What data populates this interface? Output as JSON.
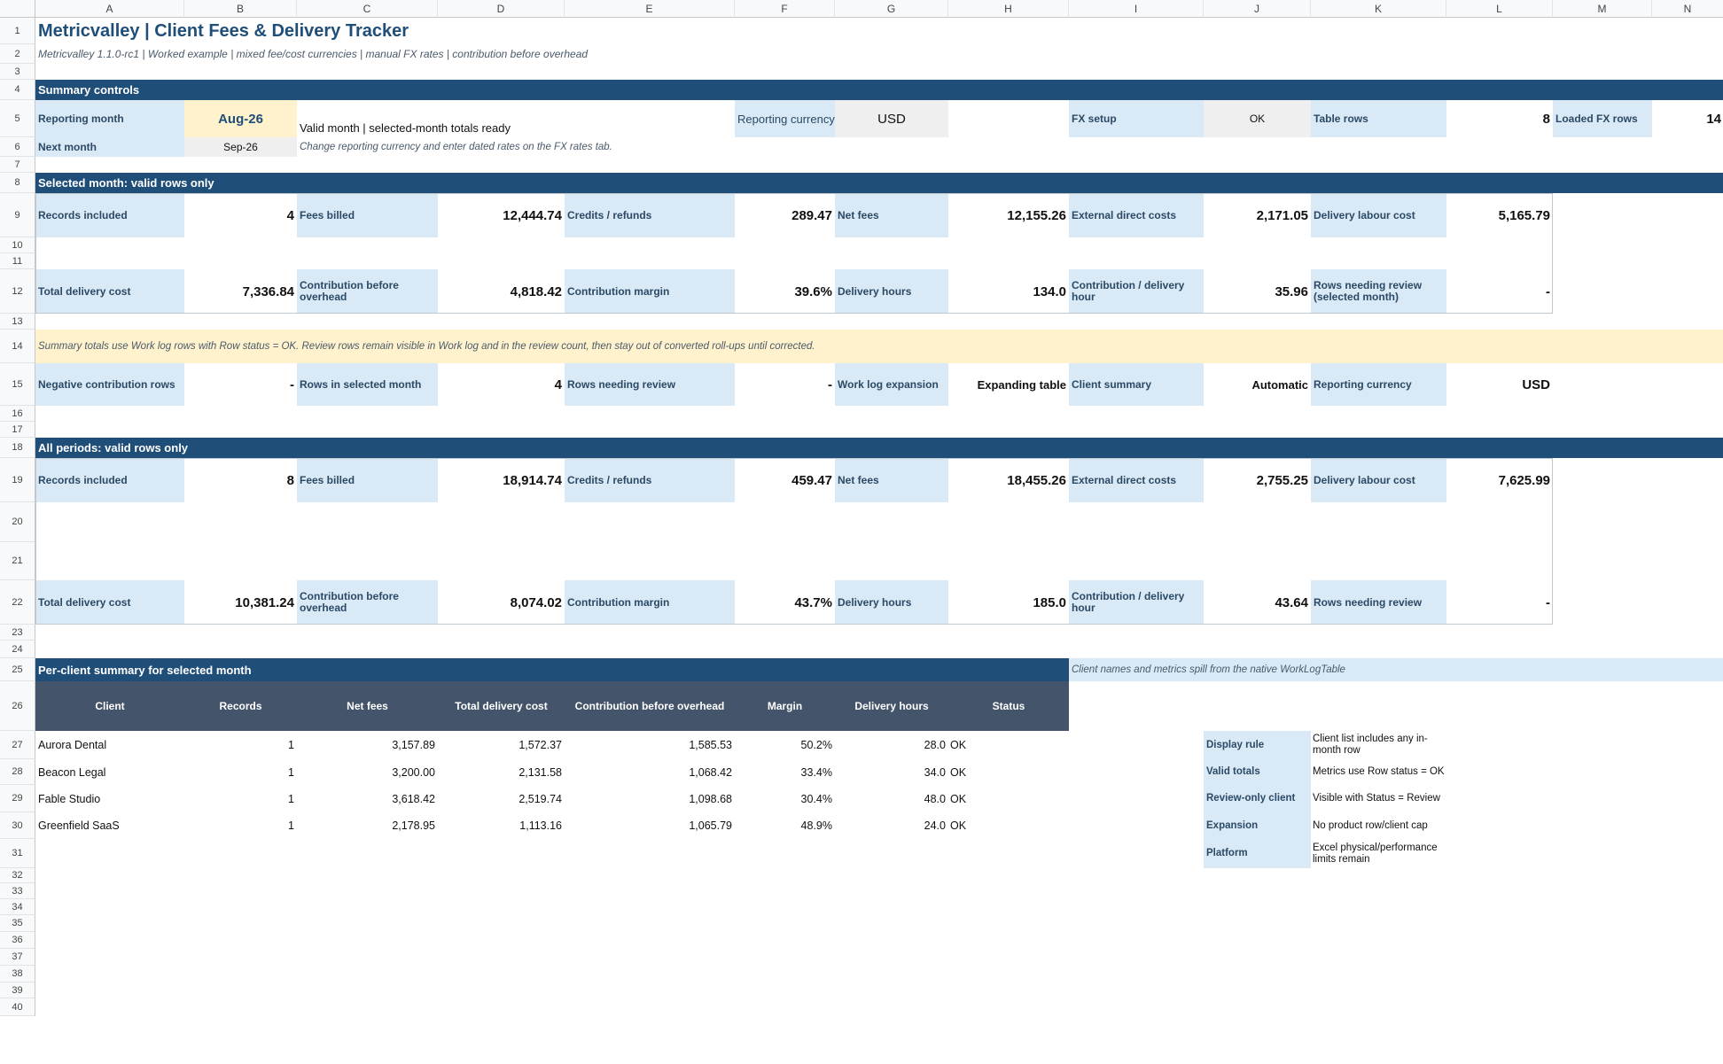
{
  "columns": [
    "A",
    "B",
    "C",
    "D",
    "E",
    "F",
    "G",
    "H",
    "I",
    "J",
    "K",
    "L",
    "M",
    "N"
  ],
  "rows": [
    "1",
    "2",
    "3",
    "4",
    "5",
    "6",
    "7",
    "8",
    "9",
    "10",
    "11",
    "12",
    "13",
    "14",
    "15",
    "16",
    "17",
    "18",
    "19",
    "20",
    "21",
    "22",
    "23",
    "24",
    "25",
    "26",
    "27",
    "28",
    "29",
    "30",
    "31",
    "32",
    "33",
    "34",
    "35",
    "36",
    "37",
    "38",
    "39",
    "40"
  ],
  "title": "Metricvalley | Client Fees & Delivery Tracker",
  "subtitle": "Metricvalley 1.1.0-rc1 | Worked example | mixed fee/cost currencies | manual FX rates | contribution before overhead",
  "summary_controls": {
    "band": "Summary controls",
    "reporting_month_label": "Reporting month",
    "reporting_month": "Aug-26",
    "status": "Valid month | selected-month totals ready",
    "reporting_currency_label": "Reporting currency",
    "reporting_currency": "USD",
    "fx_setup_label": "FX setup",
    "fx_setup": "OK",
    "table_rows_label": "Table rows",
    "table_rows": "8",
    "loaded_fx_label": "Loaded FX rows",
    "loaded_fx": "14",
    "next_month_label": "Next month",
    "next_month": "Sep-26",
    "note": "Change reporting currency and enter dated rates on the FX rates tab."
  },
  "selected_month": {
    "band": "Selected month: valid rows only",
    "records_label": "Records included",
    "records": "4",
    "fees_label": "Fees billed",
    "fees": "12,444.74",
    "credits_label": "Credits / refunds",
    "credits": "289.47",
    "net_label": "Net fees",
    "net": "12,155.26",
    "ext_label": "External direct costs",
    "ext": "2,171.05",
    "labour_label": "Delivery labour cost",
    "labour": "5,165.79",
    "total_cost_label": "Total delivery cost",
    "total_cost": "7,336.84",
    "contrib_label": "Contribution before overhead",
    "contrib": "4,818.42",
    "margin_label": "Contribution margin",
    "margin": "39.6%",
    "hours_label": "Delivery hours",
    "hours": "134.0",
    "per_hour_label": "Contribution / delivery hour",
    "per_hour": "35.96",
    "review_label": "Rows needing review (selected month)",
    "review": "-"
  },
  "info_note": "Summary totals use Work log rows with Row status = OK. Review rows remain visible in Work log and in the review count, then stay out of converted roll-ups until corrected.",
  "checks": {
    "neg_label": "Negative contribution rows",
    "neg": "-",
    "rows_month_label": "Rows in selected month",
    "rows_month": "4",
    "review_label": "Rows needing review",
    "review": "-",
    "expansion_label": "Work log expansion",
    "expansion": "Expanding table",
    "client_summary_label": "Client summary",
    "client_summary": "Automatic",
    "currency_label": "Reporting currency",
    "currency": "USD"
  },
  "all_periods": {
    "band": "All periods: valid rows only",
    "records_label": "Records included",
    "records": "8",
    "fees_label": "Fees billed",
    "fees": "18,914.74",
    "credits_label": "Credits / refunds",
    "credits": "459.47",
    "net_label": "Net fees",
    "net": "18,455.26",
    "ext_label": "External direct costs",
    "ext": "2,755.25",
    "labour_label": "Delivery labour cost",
    "labour": "7,625.99",
    "total_cost_label": "Total delivery cost",
    "total_cost": "10,381.24",
    "contrib_label": "Contribution before overhead",
    "contrib": "8,074.02",
    "margin_label": "Contribution margin",
    "margin": "43.7%",
    "hours_label": "Delivery hours",
    "hours": "185.0",
    "per_hour_label": "Contribution / delivery hour",
    "per_hour": "43.64",
    "review_label": "Rows needing review",
    "review": "-"
  },
  "per_client": {
    "band": "Per-client summary for selected month",
    "spill_note": "Client names and metrics spill from the native WorkLogTable",
    "headers": [
      "Client",
      "Records",
      "Net fees",
      "Total delivery cost",
      "Contribution before overhead",
      "Margin",
      "Delivery hours",
      "Status"
    ],
    "rows": [
      [
        "Aurora Dental",
        "1",
        "3,157.89",
        "1,572.37",
        "1,585.53",
        "50.2%",
        "28.0",
        "OK"
      ],
      [
        "Beacon Legal",
        "1",
        "3,200.00",
        "2,131.58",
        "1,068.42",
        "33.4%",
        "34.0",
        "OK"
      ],
      [
        "Fable Studio",
        "1",
        "3,618.42",
        "2,519.74",
        "1,098.68",
        "30.4%",
        "48.0",
        "OK"
      ],
      [
        "Greenfield SaaS",
        "1",
        "2,178.95",
        "1,113.16",
        "1,065.79",
        "48.9%",
        "24.0",
        "OK"
      ]
    ]
  },
  "rules": [
    {
      "label": "Display rule",
      "text": "Client list includes any in-month row"
    },
    {
      "label": "Valid totals",
      "text": "Metrics use Row status = OK"
    },
    {
      "label": "Review-only client",
      "text": "Visible with Status = Review"
    },
    {
      "label": "Expansion",
      "text": "No product row/client cap"
    },
    {
      "label": "Platform",
      "text": "Excel physical/performance limits remain"
    }
  ]
}
